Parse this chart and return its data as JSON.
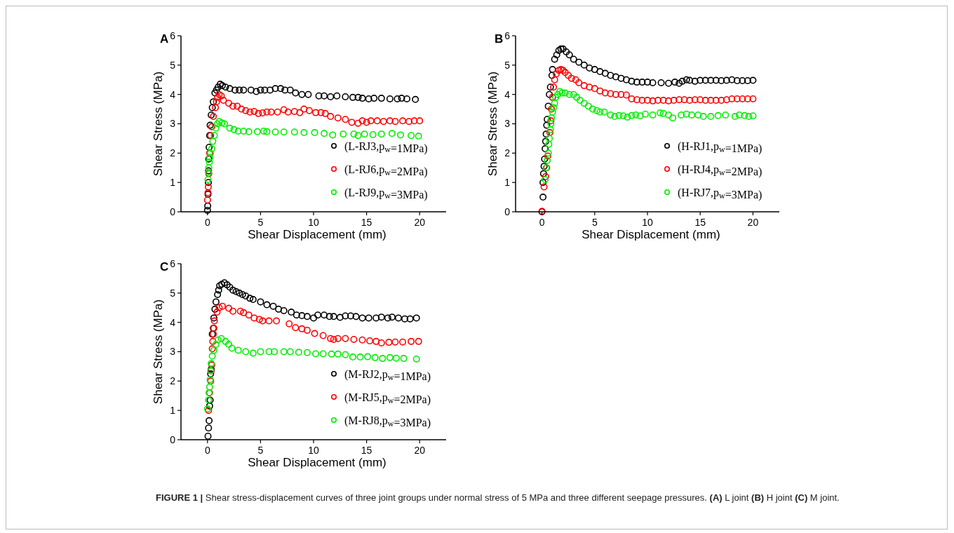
{
  "chart_data": [
    {
      "type": "scatter",
      "title": "A",
      "xlabel": "Shear Displacement (mm)",
      "ylabel": "Shear Stress (MPa)",
      "xlim": [
        -2.5,
        22.5
      ],
      "xticks": [
        0,
        5,
        10,
        15,
        20
      ],
      "ylim": [
        0,
        6
      ],
      "yticks": [
        0,
        1,
        2,
        3,
        4,
        5,
        6
      ],
      "marker": "circle",
      "legend": "bottom right",
      "grid": false,
      "series": [
        {
          "name": "(L-RJ3,p$_{w}$=1MPa)",
          "color": "#000000",
          "x": [
            0,
            0.02,
            0.05,
            0.08,
            0.1,
            0.12,
            0.15,
            0.2,
            0.25,
            0.35,
            0.45,
            0.55,
            0.7,
            0.85,
            1.0,
            1.2,
            1.4,
            1.7,
            2.1,
            2.6,
            3.0,
            3.4,
            4.1,
            4.6,
            5.0,
            5.4,
            5.9,
            6.4,
            6.9,
            7.3,
            7.8,
            8.3,
            8.9,
            9.5,
            10.5,
            11.0,
            11.6,
            12.2,
            13.0,
            13.7,
            14.2,
            14.6,
            15.2,
            15.7,
            16.4,
            17.2,
            17.9,
            18.3,
            18.8,
            19.6
          ],
          "values": [
            0.05,
            0.2,
            0.6,
            1.0,
            1.4,
            1.8,
            2.2,
            2.6,
            2.95,
            3.3,
            3.55,
            3.75,
            4.05,
            4.15,
            4.25,
            4.35,
            4.3,
            4.25,
            4.2,
            4.15,
            4.15,
            4.15,
            4.15,
            4.1,
            4.15,
            4.15,
            4.15,
            4.2,
            4.2,
            4.15,
            4.15,
            4.05,
            4.0,
            4.0,
            3.95,
            3.95,
            3.92,
            3.95,
            3.92,
            3.9,
            3.9,
            3.87,
            3.85,
            3.87,
            3.87,
            3.85,
            3.85,
            3.87,
            3.85,
            3.83
          ]
        },
        {
          "name": "(L-RJ6,p$_{w}$=2MPa)",
          "color": "#ff0000",
          "x": [
            0,
            0.05,
            0.08,
            0.12,
            0.2,
            0.3,
            0.4,
            0.55,
            0.75,
            0.85,
            0.95,
            1.1,
            1.3,
            1.5,
            2.0,
            2.4,
            2.8,
            3.2,
            3.6,
            4.0,
            4.4,
            4.8,
            5.2,
            5.6,
            6.0,
            6.6,
            7.2,
            7.6,
            8.2,
            8.7,
            9.1,
            9.6,
            10.2,
            10.7,
            11.1,
            11.6,
            12.3,
            13.0,
            13.6,
            14.2,
            14.6,
            15.0,
            15.4,
            16.0,
            16.6,
            17.2,
            17.7,
            18.4,
            19.0,
            19.5,
            20.0
          ],
          "values": [
            0.4,
            0.65,
            0.85,
            1.3,
            2.0,
            2.6,
            2.9,
            3.25,
            3.55,
            3.75,
            3.9,
            4.0,
            3.95,
            3.8,
            3.7,
            3.6,
            3.6,
            3.5,
            3.45,
            3.4,
            3.42,
            3.35,
            3.37,
            3.4,
            3.4,
            3.4,
            3.48,
            3.4,
            3.42,
            3.38,
            3.5,
            3.45,
            3.38,
            3.38,
            3.35,
            3.25,
            3.2,
            3.15,
            3.05,
            3.02,
            3.1,
            3.05,
            3.1,
            3.1,
            3.08,
            3.1,
            3.08,
            3.1,
            3.08,
            3.1,
            3.1
          ]
        },
        {
          "name": "(L-RJ9,p$_{w}$=3MPa)",
          "color": "#00ee00",
          "x": [
            0.05,
            0.1,
            0.12,
            0.18,
            0.22,
            0.28,
            0.4,
            0.5,
            0.65,
            0.8,
            0.95,
            1.1,
            1.35,
            1.6,
            2.1,
            2.5,
            2.9,
            3.4,
            3.9,
            4.7,
            5.3,
            5.6,
            6.4,
            7.2,
            8.2,
            9.1,
            10.1,
            11.0,
            11.8,
            12.8,
            13.8,
            14.2,
            14.8,
            15.6,
            16.4,
            17.4,
            18.2,
            19.2,
            19.9
          ],
          "values": [
            1.1,
            1.35,
            1.5,
            1.7,
            1.85,
            2.0,
            2.15,
            2.4,
            2.6,
            2.85,
            3.0,
            3.08,
            3.03,
            3.0,
            2.85,
            2.8,
            2.75,
            2.75,
            2.73,
            2.73,
            2.75,
            2.73,
            2.72,
            2.72,
            2.72,
            2.7,
            2.7,
            2.67,
            2.62,
            2.65,
            2.65,
            2.6,
            2.65,
            2.63,
            2.65,
            2.67,
            2.62,
            2.6,
            2.58
          ]
        }
      ]
    },
    {
      "type": "scatter",
      "title": "B",
      "xlabel": "Shear Displacement (mm)",
      "ylabel": "Shear Stress (MPa)",
      "xlim": [
        -2.5,
        22.5
      ],
      "xticks": [
        0,
        5,
        10,
        15,
        20
      ],
      "ylim": [
        0,
        6
      ],
      "yticks": [
        0,
        1,
        2,
        3,
        4,
        5,
        6
      ],
      "marker": "circle",
      "legend": "bottom right",
      "grid": false,
      "series": [
        {
          "name": "(H-RJ1,p$_{w}$=1MPa)",
          "color": "#000000",
          "x": [
            0.0,
            0.1,
            0.1,
            0.15,
            0.2,
            0.25,
            0.3,
            0.35,
            0.4,
            0.45,
            0.5,
            0.6,
            0.7,
            0.8,
            0.95,
            1.0,
            1.2,
            1.4,
            1.6,
            1.8,
            2.0,
            2.3,
            2.6,
            3.0,
            3.5,
            4.0,
            4.5,
            5.0,
            5.5,
            6.0,
            6.5,
            7.0,
            7.5,
            8.0,
            8.5,
            9.0,
            9.5,
            10.0,
            10.5,
            11.3,
            12.0,
            12.6,
            13.0,
            13.3,
            13.7,
            14.0,
            14.5,
            15.0,
            15.5,
            16.0,
            16.5,
            17.0,
            17.5,
            18.0,
            18.5,
            19.0,
            19.5,
            20.0
          ],
          "values": [
            0.0,
            0.5,
            1.0,
            1.3,
            1.55,
            1.8,
            2.15,
            2.4,
            2.65,
            2.95,
            3.15,
            3.6,
            4.0,
            4.25,
            4.65,
            4.85,
            5.2,
            5.35,
            5.5,
            5.55,
            5.55,
            5.45,
            5.35,
            5.2,
            5.1,
            5.0,
            4.9,
            4.85,
            4.78,
            4.72,
            4.65,
            4.6,
            4.55,
            4.5,
            4.45,
            4.42,
            4.42,
            4.42,
            4.4,
            4.4,
            4.38,
            4.42,
            4.38,
            4.45,
            4.5,
            4.48,
            4.45,
            4.48,
            4.48,
            4.48,
            4.48,
            4.47,
            4.48,
            4.5,
            4.47,
            4.47,
            4.47,
            4.48
          ]
        },
        {
          "name": "(H-RJ4,p$_{w}$=2MPa)",
          "color": "#ff0000",
          "x": [
            0.0,
            0.2,
            0.35,
            0.45,
            0.55,
            0.75,
            0.85,
            0.9,
            1.0,
            1.1,
            1.2,
            1.35,
            1.6,
            1.8,
            2.0,
            2.2,
            2.5,
            2.8,
            3.2,
            3.5,
            4.0,
            4.5,
            5.0,
            5.5,
            6.0,
            6.5,
            7.0,
            7.5,
            8.0,
            8.5,
            9.0,
            9.5,
            10.0,
            10.5,
            11.0,
            11.5,
            12.0,
            12.5,
            13.0,
            13.5,
            14.0,
            14.5,
            15.0,
            15.5,
            16.0,
            16.5,
            17.0,
            17.5,
            18.0,
            18.5,
            19.0,
            19.5,
            20.0
          ],
          "values": [
            0.02,
            0.85,
            1.2,
            1.5,
            1.9,
            2.7,
            3.1,
            3.5,
            3.9,
            4.25,
            4.5,
            4.7,
            4.82,
            4.85,
            4.82,
            4.75,
            4.65,
            4.55,
            4.5,
            4.4,
            4.3,
            4.25,
            4.2,
            4.12,
            4.05,
            4.03,
            4.0,
            4.0,
            3.98,
            3.85,
            3.82,
            3.8,
            3.8,
            3.78,
            3.8,
            3.8,
            3.78,
            3.8,
            3.82,
            3.82,
            3.8,
            3.82,
            3.82,
            3.8,
            3.8,
            3.8,
            3.8,
            3.82,
            3.85,
            3.85,
            3.85,
            3.85,
            3.85
          ]
        },
        {
          "name": "(H-RJ7,p$_{w}$=3MPa)",
          "color": "#00ee00",
          "x": [
            0.3,
            0.4,
            0.5,
            0.6,
            0.65,
            0.7,
            0.8,
            0.85,
            0.9,
            1.0,
            1.1,
            1.2,
            1.3,
            1.5,
            1.7,
            1.9,
            2.2,
            2.6,
            3.0,
            3.3,
            3.6,
            4.0,
            4.4,
            4.8,
            5.2,
            5.5,
            5.9,
            6.5,
            6.9,
            7.3,
            7.7,
            8.1,
            8.5,
            8.9,
            9.3,
            9.8,
            10.5,
            11.2,
            11.5,
            12.0,
            12.4,
            13.2,
            13.7,
            14.2,
            14.8,
            15.3,
            16.0,
            16.7,
            17.4,
            18.3,
            18.7,
            19.2,
            19.6,
            20.0
          ],
          "values": [
            1.1,
            1.5,
            1.75,
            2.0,
            2.3,
            2.5,
            2.8,
            3.0,
            3.2,
            3.4,
            3.55,
            3.7,
            3.9,
            4.0,
            4.1,
            4.05,
            4.05,
            4.0,
            4.0,
            3.9,
            3.8,
            3.7,
            3.6,
            3.5,
            3.45,
            3.4,
            3.4,
            3.3,
            3.25,
            3.28,
            3.27,
            3.23,
            3.28,
            3.3,
            3.27,
            3.33,
            3.3,
            3.37,
            3.35,
            3.3,
            3.2,
            3.3,
            3.33,
            3.3,
            3.3,
            3.25,
            3.25,
            3.28,
            3.3,
            3.25,
            3.3,
            3.28,
            3.25,
            3.27
          ]
        }
      ]
    },
    {
      "type": "scatter",
      "title": "C",
      "xlabel": "Shear Displacement (mm)",
      "ylabel": "Shear Stress (MPa)",
      "xlim": [
        -2.5,
        22.5
      ],
      "xticks": [
        0,
        5,
        10,
        15,
        20
      ],
      "ylim": [
        0,
        6
      ],
      "yticks": [
        0,
        1,
        2,
        3,
        4,
        5,
        6
      ],
      "marker": "circle",
      "legend": "bottom right",
      "grid": false,
      "annotations": [
        "FIGURE 1 | Shear stress-displacement curves of three joint groups under normal stress of 5 MPa and three different seepage pressures. (A) L joint (B) H joint (C) M joint."
      ],
      "series": [
        {
          "name": "(M-RJ2,p$_{w}$=1MPa)",
          "color": "#000000",
          "x": [
            0.05,
            0.1,
            0.15,
            0.2,
            0.25,
            0.3,
            0.35,
            0.45,
            0.55,
            0.6,
            0.7,
            0.8,
            0.95,
            1.05,
            1.15,
            1.35,
            1.6,
            1.85,
            2.1,
            2.4,
            2.7,
            3.0,
            3.3,
            3.6,
            4.0,
            4.3,
            5.0,
            5.6,
            6.2,
            6.7,
            7.2,
            7.9,
            8.4,
            8.9,
            9.4,
            10.0,
            10.4,
            11.0,
            11.5,
            11.9,
            12.5,
            13.0,
            13.5,
            14.0,
            14.6,
            15.2,
            15.9,
            16.4,
            17.0,
            17.4,
            18.0,
            18.6,
            19.1,
            19.7
          ],
          "values": [
            0.12,
            0.4,
            0.65,
            1.15,
            1.35,
            2.25,
            2.4,
            3.6,
            3.8,
            4.15,
            4.45,
            4.7,
            4.95,
            5.1,
            5.25,
            5.3,
            5.35,
            5.28,
            5.2,
            5.1,
            5.05,
            5.0,
            4.95,
            4.9,
            4.82,
            4.78,
            4.7,
            4.6,
            4.55,
            4.45,
            4.4,
            4.35,
            4.25,
            4.23,
            4.2,
            4.15,
            4.25,
            4.25,
            4.2,
            4.2,
            4.17,
            4.22,
            4.22,
            4.2,
            4.15,
            4.15,
            4.15,
            4.18,
            4.15,
            4.18,
            4.15,
            4.12,
            4.12,
            4.15
          ]
        },
        {
          "name": "(M-RJ5,p$_{w}$=2MPa)",
          "color": "#ff0000",
          "x": [
            0.1,
            0.2,
            0.3,
            0.35,
            0.4,
            0.45,
            0.5,
            0.55,
            0.6,
            0.65,
            0.9,
            1.1,
            1.4,
            2.0,
            2.4,
            3.1,
            3.4,
            3.9,
            4.4,
            4.9,
            5.2,
            5.8,
            6.5,
            7.7,
            8.3,
            8.9,
            9.4,
            10.1,
            10.9,
            11.6,
            11.9,
            12.3,
            13.0,
            13.8,
            14.6,
            15.3,
            15.9,
            16.4,
            17.1,
            17.7,
            18.4,
            19.2,
            19.9
          ],
          "values": [
            1.0,
            1.6,
            2.0,
            2.35,
            2.55,
            3.1,
            3.35,
            3.6,
            3.8,
            4.05,
            4.35,
            4.5,
            4.55,
            4.48,
            4.38,
            4.38,
            4.33,
            4.25,
            4.15,
            4.1,
            4.05,
            4.05,
            4.05,
            3.95,
            3.82,
            3.78,
            3.73,
            3.62,
            3.55,
            3.45,
            3.42,
            3.45,
            3.45,
            3.42,
            3.4,
            3.37,
            3.35,
            3.3,
            3.32,
            3.33,
            3.33,
            3.35,
            3.35
          ]
        },
        {
          "name": "(M-RJ8,p$_{w}$=3MPa)",
          "color": "#00ee00",
          "x": [
            0.0,
            0.1,
            0.15,
            0.2,
            0.25,
            0.3,
            0.35,
            0.45,
            0.6,
            0.8,
            1.0,
            1.3,
            1.7,
            2.0,
            2.3,
            2.9,
            3.6,
            4.3,
            5.0,
            5.8,
            6.3,
            7.2,
            7.8,
            8.6,
            9.4,
            10.2,
            10.9,
            11.7,
            12.3,
            13.0,
            13.7,
            14.4,
            15.1,
            15.8,
            16.5,
            17.2,
            17.8,
            18.5,
            19.7
          ],
          "values": [
            1.05,
            1.35,
            1.6,
            1.8,
            2.05,
            2.35,
            2.6,
            2.85,
            3.05,
            3.25,
            3.4,
            3.45,
            3.35,
            3.25,
            3.12,
            3.05,
            3.0,
            2.95,
            3.0,
            3.0,
            3.0,
            3.0,
            3.0,
            2.98,
            2.97,
            2.93,
            2.93,
            2.92,
            2.92,
            2.9,
            2.82,
            2.82,
            2.83,
            2.8,
            2.77,
            2.8,
            2.78,
            2.77,
            2.75
          ]
        }
      ]
    }
  ]
}
